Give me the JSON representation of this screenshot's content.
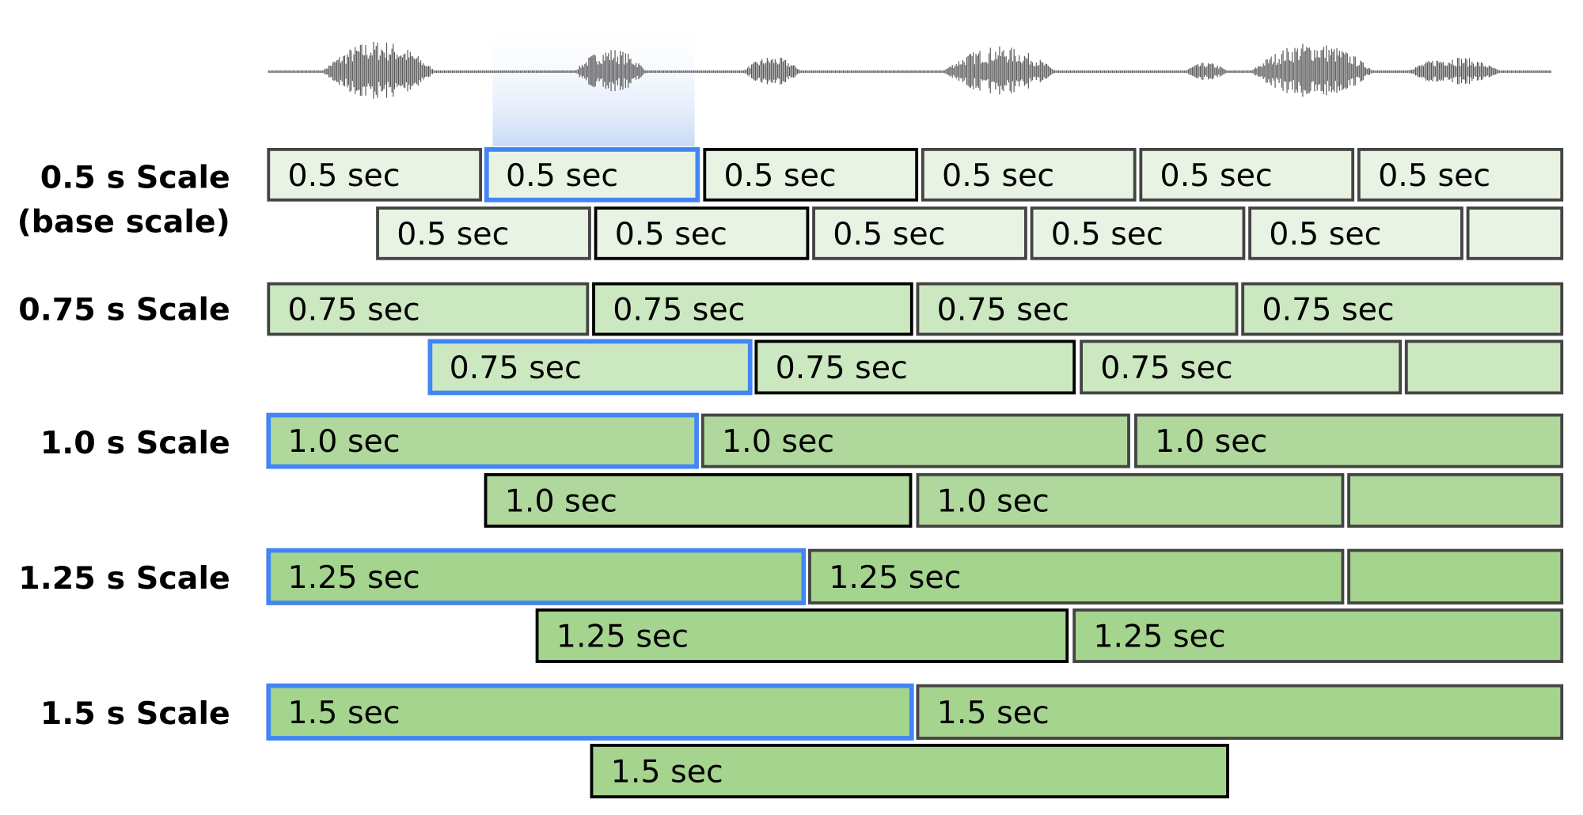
{
  "colors": {
    "selected_border": "#4285f4",
    "bold_border": "#000000",
    "normal_border": "#444444",
    "highlight": "#c9dbf7",
    "waveform": "#555555"
  },
  "scales": [
    {
      "label": "0.5 s Scale",
      "sublabel": "(base scale)",
      "fill": "#e8f3e3",
      "rows": [
        [
          {
            "text": "0.5 sec",
            "style": "normal"
          },
          {
            "text": "0.5 sec",
            "style": "selected"
          },
          {
            "text": "0.5 sec",
            "style": "bold"
          },
          {
            "text": "0.5 sec",
            "style": "normal"
          },
          {
            "text": "0.5 sec",
            "style": "normal"
          },
          {
            "text": "0.5 sec",
            "style": "normal"
          }
        ],
        [
          {
            "text": "0.5 sec",
            "style": "normal"
          },
          {
            "text": "0.5 sec",
            "style": "bold"
          },
          {
            "text": "0.5 sec",
            "style": "normal"
          },
          {
            "text": "0.5 sec",
            "style": "normal"
          },
          {
            "text": "0.5 sec",
            "style": "normal"
          },
          {
            "text": "",
            "style": "normal"
          }
        ]
      ]
    },
    {
      "label": "0.75 s Scale",
      "fill": "#cce8c0",
      "rows": [
        [
          {
            "text": "0.75 sec",
            "style": "normal"
          },
          {
            "text": "0.75 sec",
            "style": "bold"
          },
          {
            "text": "0.75 sec",
            "style": "normal"
          },
          {
            "text": "0.75 sec",
            "style": "normal"
          }
        ],
        [
          {
            "text": "0.75 sec",
            "style": "selected"
          },
          {
            "text": "0.75 sec",
            "style": "bold"
          },
          {
            "text": "0.75 sec",
            "style": "normal"
          },
          {
            "text": "",
            "style": "normal"
          }
        ]
      ]
    },
    {
      "label": "1.0 s Scale",
      "fill": "#b0d89c",
      "rows": [
        [
          {
            "text": "1.0 sec",
            "style": "selected"
          },
          {
            "text": "1.0 sec",
            "style": "normal"
          },
          {
            "text": "1.0 sec",
            "style": "normal"
          }
        ],
        [
          {
            "text": "1.0 sec",
            "style": "bold"
          },
          {
            "text": "1.0 sec",
            "style": "normal"
          },
          {
            "text": "",
            "style": "normal"
          }
        ]
      ]
    },
    {
      "label": "1.25 s Scale",
      "fill": "#a5d48e",
      "rows": [
        [
          {
            "text": "1.25 sec",
            "style": "selected"
          },
          {
            "text": "1.25 sec",
            "style": "normal"
          },
          {
            "text": "",
            "style": "normal"
          }
        ],
        [
          {
            "text": "1.25 sec",
            "style": "bold"
          },
          {
            "text": "1.25 sec",
            "style": "normal"
          }
        ]
      ]
    },
    {
      "label": "1.5 s Scale",
      "fill": "#a5d48e",
      "rows": [
        [
          {
            "text": "1.5 sec",
            "style": "selected"
          },
          {
            "text": "1.5 sec",
            "style": "normal"
          }
        ],
        [
          {
            "text": "1.5 sec",
            "style": "bold"
          }
        ]
      ]
    }
  ]
}
